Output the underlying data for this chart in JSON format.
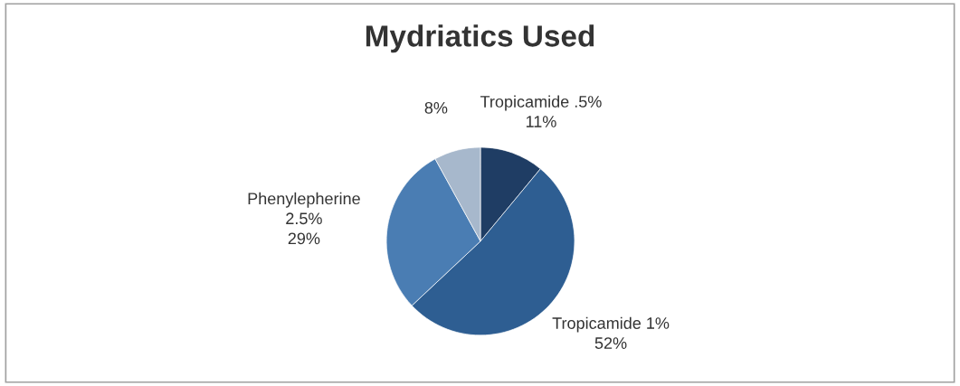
{
  "chart_data": {
    "type": "pie",
    "title": "Mydriatics Used",
    "categories": [
      "Tropicamide .5%",
      "Tropicamide 1%",
      "Phenylepherine\n2.5%",
      null
    ],
    "values": [
      11,
      52,
      29,
      8
    ],
    "value_labels": [
      "11%",
      "52%",
      "29%",
      "8%"
    ],
    "colors": [
      "#1f3d64",
      "#2e5e92",
      "#4a7db3",
      "#a7b8cc"
    ],
    "legend": false
  }
}
